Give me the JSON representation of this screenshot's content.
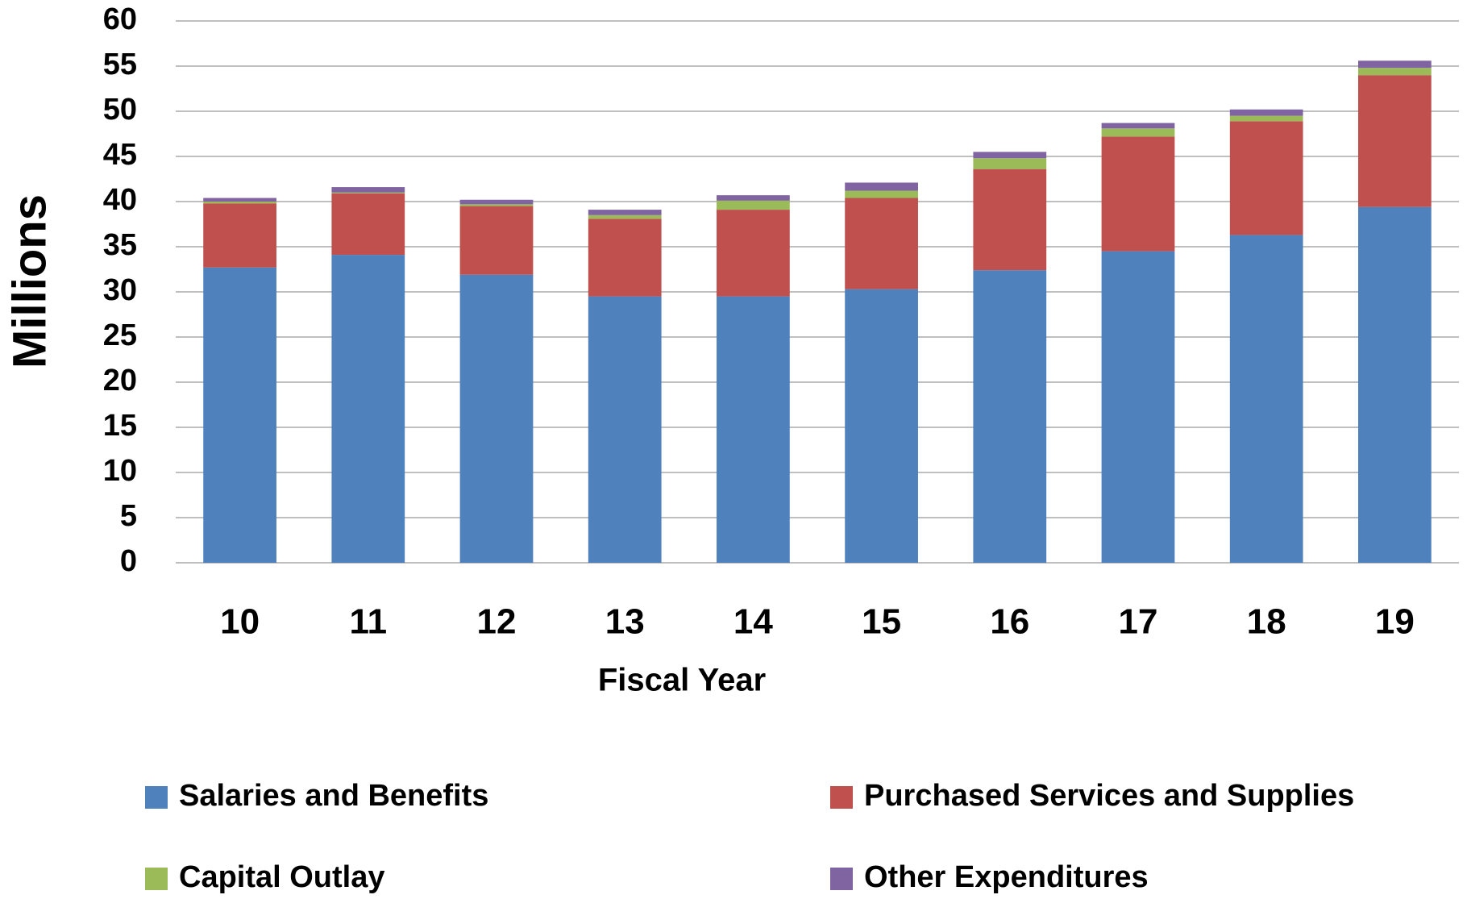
{
  "chart_data": {
    "type": "bar",
    "stacked": true,
    "x_label": "Fiscal Year",
    "y_label": "Millions",
    "categories": [
      "10",
      "11",
      "12",
      "13",
      "14",
      "15",
      "16",
      "17",
      "18",
      "19"
    ],
    "series": [
      {
        "name": "Salaries and Benefits",
        "color": "#4f81bd",
        "values": [
          32.7,
          34.1,
          31.9,
          29.5,
          29.5,
          30.3,
          32.4,
          34.5,
          36.3,
          39.4
        ]
      },
      {
        "name": "Purchased Services and Supplies",
        "color": "#c0504d",
        "values": [
          7.1,
          6.8,
          7.6,
          8.6,
          9.6,
          10.1,
          11.2,
          12.7,
          12.6,
          14.6
        ]
      },
      {
        "name": "Capital Outlay",
        "color": "#9bbb59",
        "values": [
          0.2,
          0.1,
          0.2,
          0.4,
          1.0,
          0.8,
          1.2,
          0.9,
          0.6,
          0.8
        ]
      },
      {
        "name": "Other Expenditures",
        "color": "#8064a2",
        "values": [
          0.4,
          0.6,
          0.5,
          0.6,
          0.6,
          0.9,
          0.7,
          0.6,
          0.7,
          0.8
        ]
      }
    ],
    "ylim": [
      0,
      60
    ],
    "yticks": [
      0,
      5,
      10,
      15,
      20,
      25,
      30,
      35,
      40,
      45,
      50,
      55,
      60
    ],
    "grid": true,
    "legend": "bottom"
  }
}
